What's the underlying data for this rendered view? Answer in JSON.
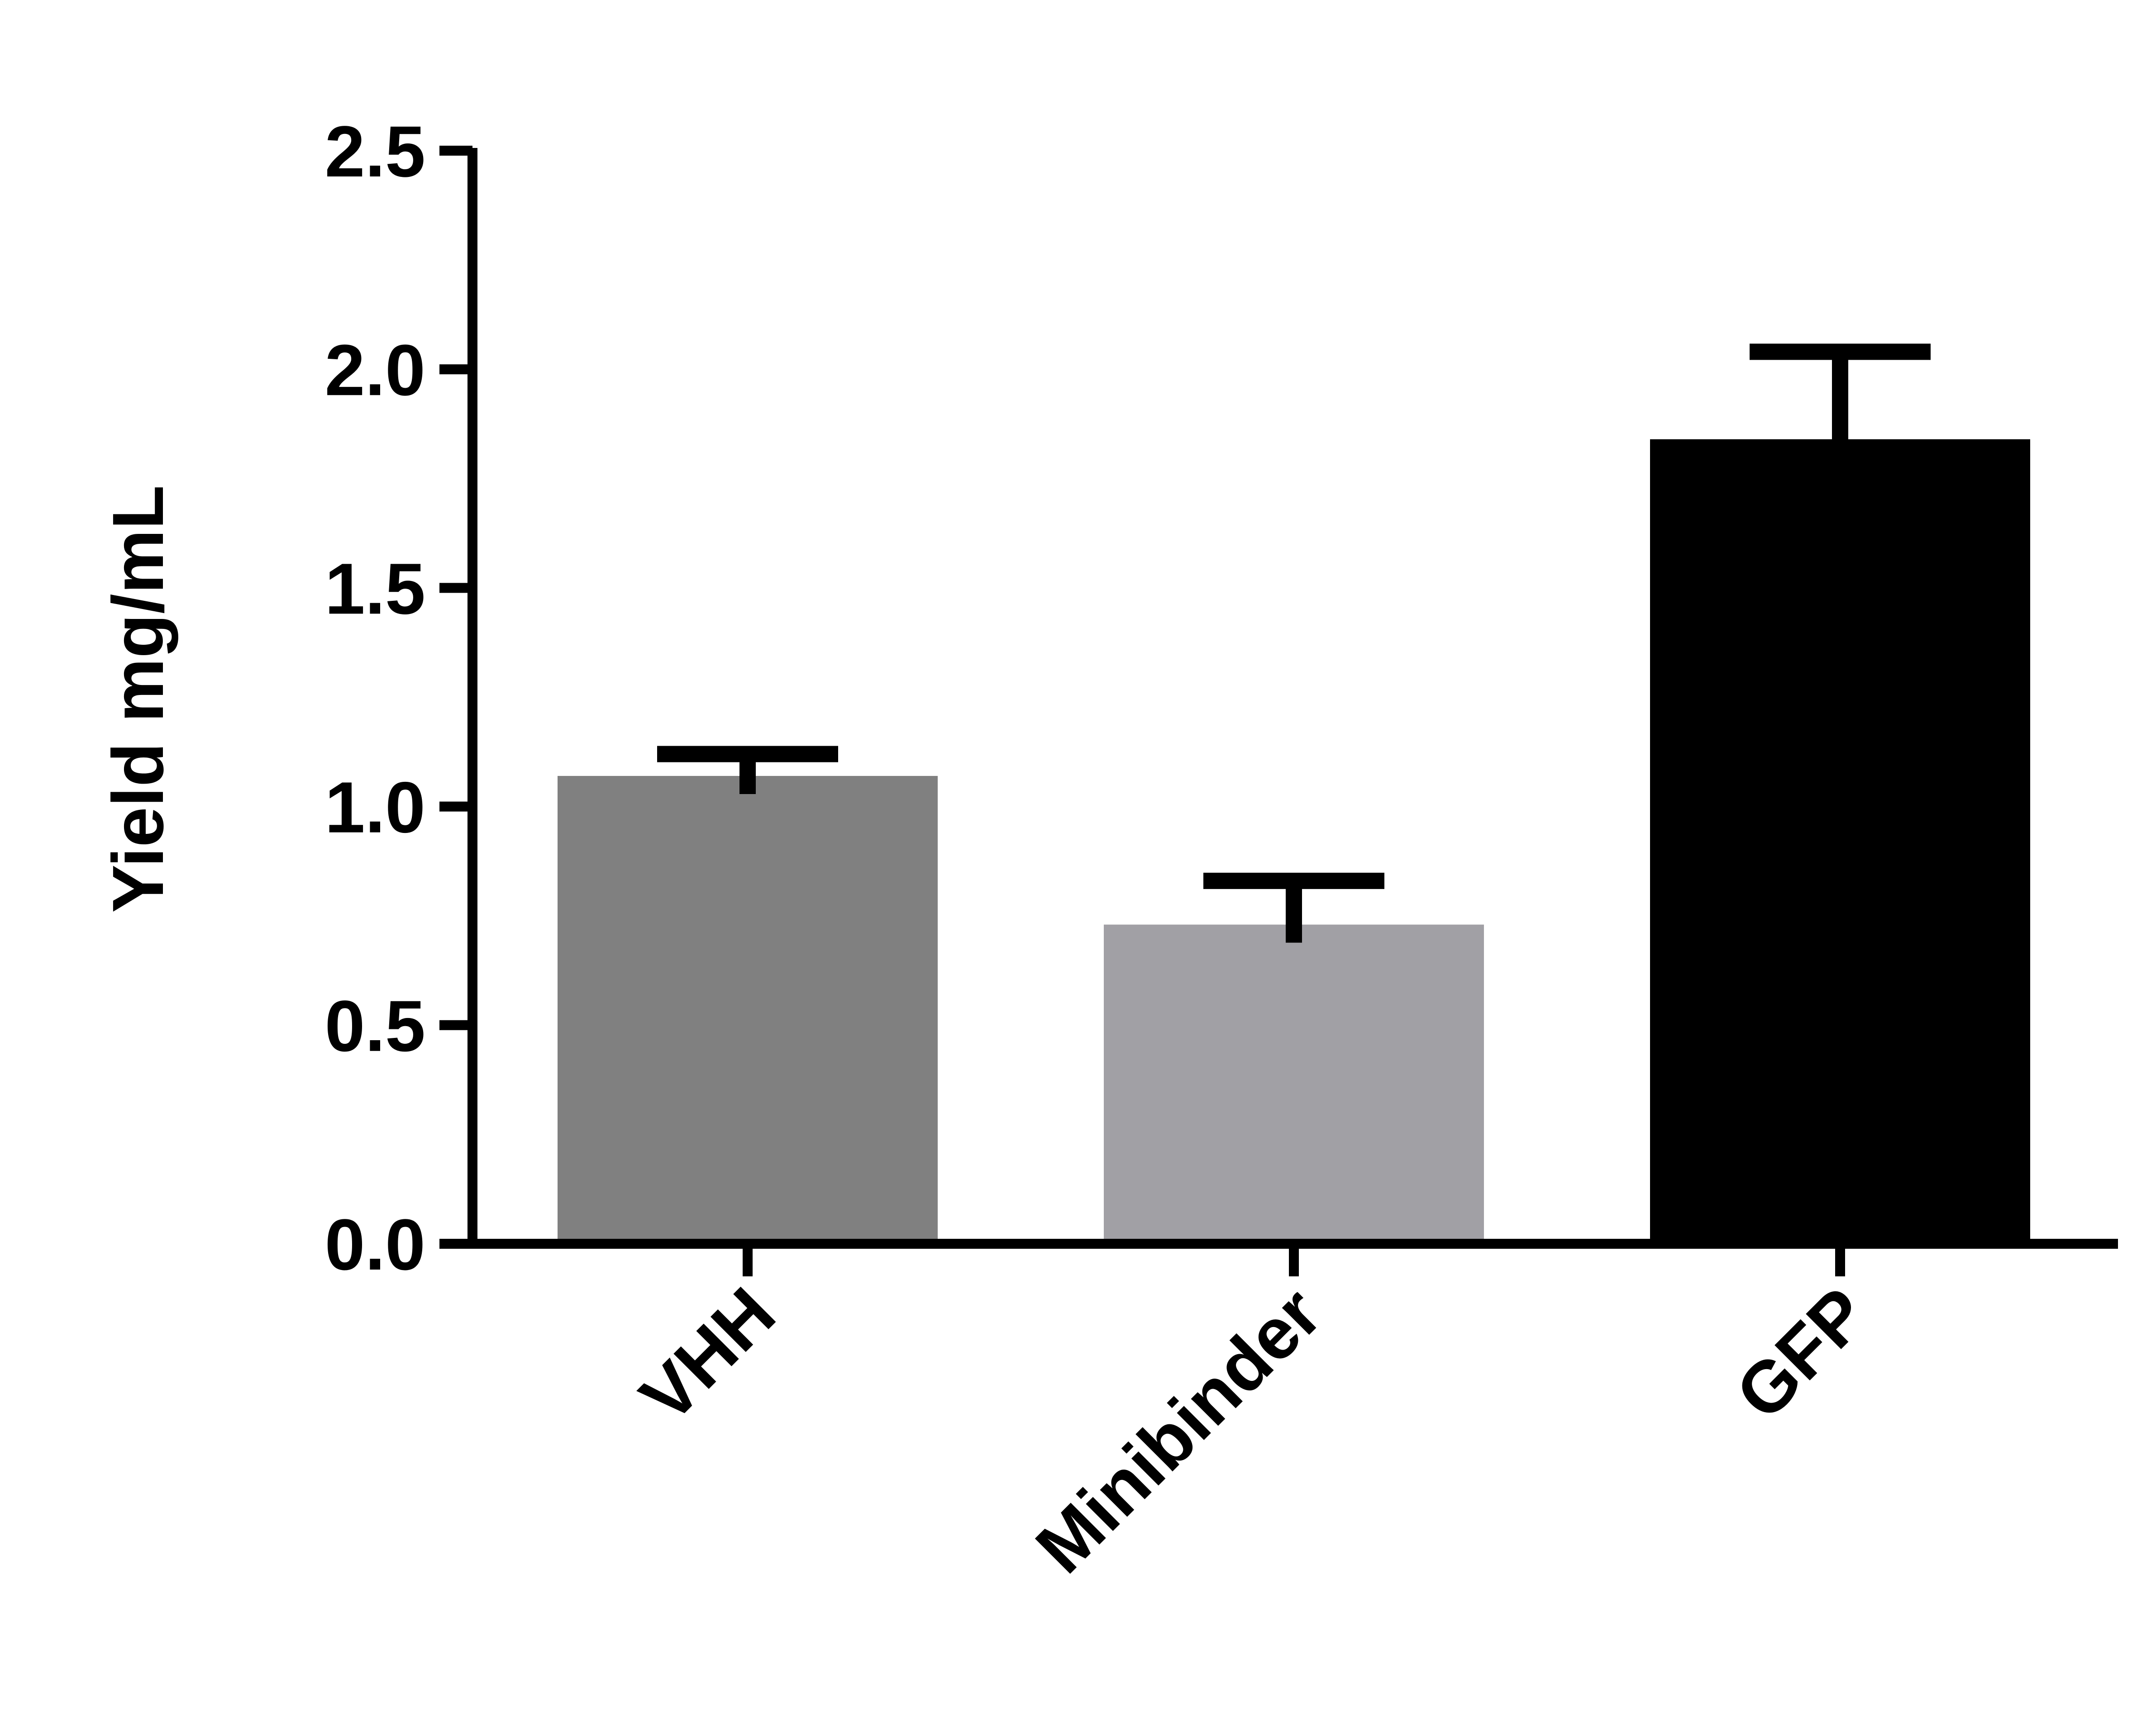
{
  "chart_data": {
    "type": "bar",
    "title": "",
    "xlabel": "",
    "ylabel": "Yield mg/mL",
    "categories": [
      "VHH",
      "Minibinder",
      "GFP"
    ],
    "values": [
      1.07,
      0.73,
      1.84
    ],
    "error_upper": [
      1.12,
      0.83,
      2.04
    ],
    "ylim": [
      0,
      2.5
    ],
    "yticks": [
      "0.0",
      "0.5",
      "1.0",
      "1.5",
      "2.0",
      "2.5"
    ],
    "bar_colors": [
      "#808080",
      "#a1a0a5",
      "#000000"
    ],
    "grid": false,
    "legend": "none"
  }
}
